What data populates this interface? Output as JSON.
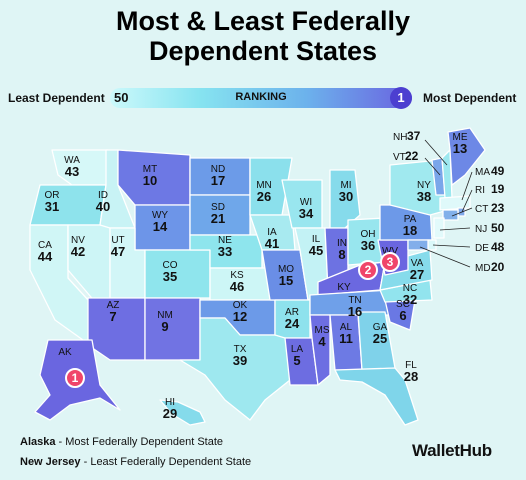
{
  "title_line1": "Most & Least Federally",
  "title_line2": "Dependent States",
  "legend": {
    "left_label": "Least Dependent",
    "right_label": "Most Dependent",
    "min": "50",
    "max": "1",
    "center": "RANKING"
  },
  "colors": {
    "background": "#dff5f5",
    "rank_low": "#ccf9fb",
    "rank_high": "#6a62e0",
    "marker": "#f0456a"
  },
  "states": [
    {
      "abbr": "WA",
      "rank": "43"
    },
    {
      "abbr": "OR",
      "rank": "31"
    },
    {
      "abbr": "CA",
      "rank": "44"
    },
    {
      "abbr": "NV",
      "rank": "42"
    },
    {
      "abbr": "ID",
      "rank": "40"
    },
    {
      "abbr": "MT",
      "rank": "10"
    },
    {
      "abbr": "WY",
      "rank": "14"
    },
    {
      "abbr": "UT",
      "rank": "47"
    },
    {
      "abbr": "AZ",
      "rank": "7"
    },
    {
      "abbr": "CO",
      "rank": "35"
    },
    {
      "abbr": "NM",
      "rank": "9"
    },
    {
      "abbr": "ND",
      "rank": "17"
    },
    {
      "abbr": "SD",
      "rank": "21"
    },
    {
      "abbr": "NE",
      "rank": "33"
    },
    {
      "abbr": "KS",
      "rank": "46"
    },
    {
      "abbr": "OK",
      "rank": "12"
    },
    {
      "abbr": "TX",
      "rank": "39"
    },
    {
      "abbr": "MN",
      "rank": "26"
    },
    {
      "abbr": "IA",
      "rank": "41"
    },
    {
      "abbr": "MO",
      "rank": "15"
    },
    {
      "abbr": "AR",
      "rank": "24"
    },
    {
      "abbr": "LA",
      "rank": "5"
    },
    {
      "abbr": "WI",
      "rank": "34"
    },
    {
      "abbr": "IL",
      "rank": "45"
    },
    {
      "abbr": "MI",
      "rank": "30"
    },
    {
      "abbr": "IN",
      "rank": "8"
    },
    {
      "abbr": "OH",
      "rank": "36"
    },
    {
      "abbr": "KY",
      "rank": "2"
    },
    {
      "abbr": "TN",
      "rank": "16"
    },
    {
      "abbr": "MS",
      "rank": "4"
    },
    {
      "abbr": "AL",
      "rank": "11"
    },
    {
      "abbr": "GA",
      "rank": "25"
    },
    {
      "abbr": "FL",
      "rank": "28"
    },
    {
      "abbr": "SC",
      "rank": "6"
    },
    {
      "abbr": "NC",
      "rank": "32"
    },
    {
      "abbr": "VA",
      "rank": "27"
    },
    {
      "abbr": "WV",
      "rank": "3"
    },
    {
      "abbr": "PA",
      "rank": "18"
    },
    {
      "abbr": "NY",
      "rank": "38"
    },
    {
      "abbr": "ME",
      "rank": "13"
    },
    {
      "abbr": "AK",
      "rank": "1"
    },
    {
      "abbr": "HI",
      "rank": "29"
    }
  ],
  "northeast": [
    {
      "abbr": "NH",
      "rank": "37"
    },
    {
      "abbr": "VT",
      "rank": "22"
    },
    {
      "abbr": "MA",
      "rank": "49"
    },
    {
      "abbr": "RI",
      "rank": "19"
    },
    {
      "abbr": "CT",
      "rank": "23"
    },
    {
      "abbr": "NJ",
      "rank": "50"
    },
    {
      "abbr": "DE",
      "rank": "48"
    },
    {
      "abbr": "MD",
      "rank": "20"
    }
  ],
  "markers": [
    {
      "label": "1"
    },
    {
      "label": "2"
    },
    {
      "label": "3"
    }
  ],
  "footer": {
    "line1_bold": "Alaska",
    "line1_rest": " - Most Federally Dependent State",
    "line2_bold": "New Jersey",
    "line2_rest": " - Least Federally Dependent State"
  },
  "brand": "WalletHub"
}
